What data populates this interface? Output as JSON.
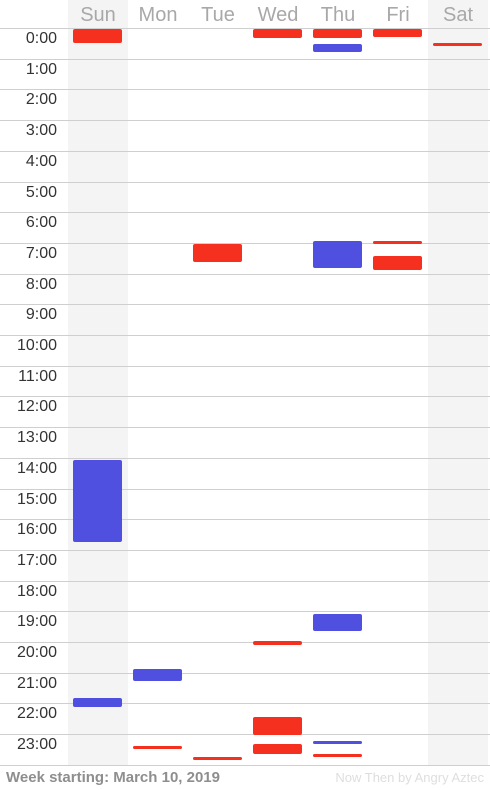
{
  "days": [
    "Sun",
    "Mon",
    "Tue",
    "Wed",
    "Thu",
    "Fri",
    "Sat"
  ],
  "weekend_days": [
    0,
    6
  ],
  "hours": [
    "0:00",
    "1:00",
    "2:00",
    "3:00",
    "4:00",
    "5:00",
    "6:00",
    "7:00",
    "8:00",
    "9:00",
    "10:00",
    "11:00",
    "12:00",
    "13:00",
    "14:00",
    "15:00",
    "16:00",
    "17:00",
    "18:00",
    "19:00",
    "20:00",
    "21:00",
    "22:00",
    "23:00"
  ],
  "colors": {
    "red": "#f5301f",
    "blue": "#5050e0"
  },
  "events": [
    {
      "day": 0,
      "start": 0.0,
      "end": 0.45,
      "color": "red"
    },
    {
      "day": 0,
      "start": 14.05,
      "end": 16.7,
      "color": "blue"
    },
    {
      "day": 0,
      "start": 21.8,
      "end": 22.1,
      "color": "blue"
    },
    {
      "day": 1,
      "start": 20.85,
      "end": 21.25,
      "color": "blue"
    },
    {
      "day": 1,
      "start": 23.35,
      "end": 23.42,
      "color": "red"
    },
    {
      "day": 2,
      "start": 7.0,
      "end": 7.6,
      "color": "red"
    },
    {
      "day": 2,
      "start": 23.7,
      "end": 23.77,
      "color": "red"
    },
    {
      "day": 3,
      "start": 0.0,
      "end": 0.3,
      "color": "red"
    },
    {
      "day": 3,
      "start": 19.95,
      "end": 20.05,
      "color": "red"
    },
    {
      "day": 3,
      "start": 22.4,
      "end": 23.0,
      "color": "red"
    },
    {
      "day": 3,
      "start": 23.3,
      "end": 23.6,
      "color": "red"
    },
    {
      "day": 4,
      "start": 0.0,
      "end": 0.3,
      "color": "red"
    },
    {
      "day": 4,
      "start": 0.5,
      "end": 0.75,
      "color": "blue"
    },
    {
      "day": 4,
      "start": 6.9,
      "end": 7.8,
      "color": "blue"
    },
    {
      "day": 4,
      "start": 19.05,
      "end": 19.6,
      "color": "blue"
    },
    {
      "day": 4,
      "start": 23.2,
      "end": 23.27,
      "color": "blue"
    },
    {
      "day": 4,
      "start": 23.6,
      "end": 23.66,
      "color": "red"
    },
    {
      "day": 5,
      "start": 0.0,
      "end": 0.25,
      "color": "red"
    },
    {
      "day": 5,
      "start": 6.9,
      "end": 7.0,
      "color": "red"
    },
    {
      "day": 5,
      "start": 7.4,
      "end": 7.85,
      "color": "red"
    },
    {
      "day": 6,
      "start": 0.45,
      "end": 0.53,
      "color": "red"
    }
  ],
  "footer": {
    "week_label": "Week starting: March 10, 2019",
    "credit": "Now Then by Angry Aztec"
  }
}
